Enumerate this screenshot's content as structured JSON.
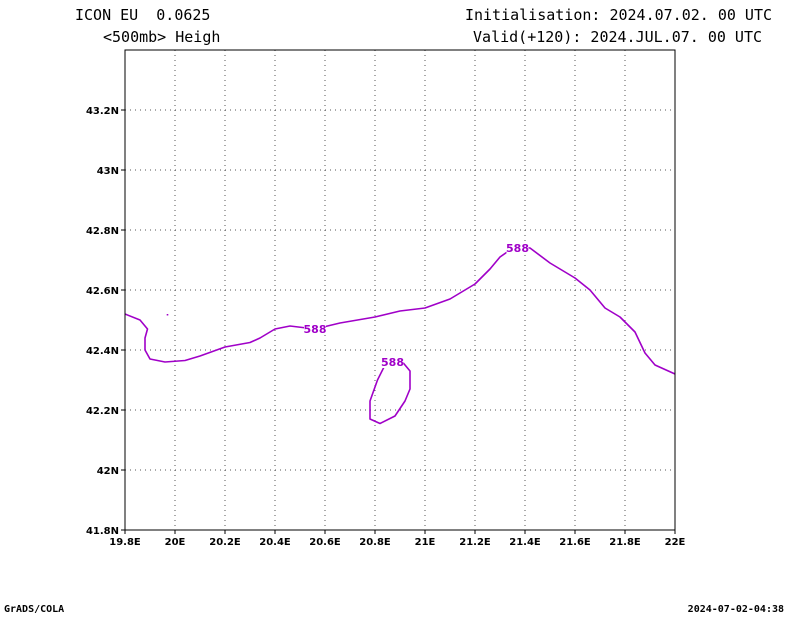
{
  "header": {
    "model": "ICON EU  0.0625",
    "field": "<500mb> Heigh",
    "init": "Initialisation: 2024.07.02. 00 UTC",
    "valid": "Valid(+120): 2024.JUL.07. 00 UTC"
  },
  "footer": {
    "left": "GrADS/COLA",
    "right": "2024-07-02-04:38"
  },
  "chart_data": {
    "type": "line",
    "xlim": [
      19.8,
      22.0
    ],
    "ylim": [
      41.8,
      43.4
    ],
    "xticks": [
      19.8,
      20.0,
      20.2,
      20.4,
      20.6,
      20.8,
      21.0,
      21.2,
      21.4,
      21.6,
      21.8,
      22.0
    ],
    "xtick_labels": [
      "19.8E",
      "20E",
      "20.2E",
      "20.4E",
      "20.6E",
      "20.8E",
      "21E",
      "21.2E",
      "21.4E",
      "21.6E",
      "21.8E",
      "22E"
    ],
    "yticks": [
      41.8,
      42.0,
      42.2,
      42.4,
      42.6,
      42.8,
      43.0,
      43.2
    ],
    "ytick_labels": [
      "41.8N",
      "42N",
      "42.2N",
      "42.4N",
      "42.6N",
      "42.8N",
      "43N",
      "43.2N"
    ],
    "grid": true,
    "line_color": "#a000c8",
    "series": [
      {
        "label": "588",
        "label_at": [
          20.56,
          42.47
        ],
        "points": [
          [
            19.8,
            42.52
          ],
          [
            19.86,
            42.5
          ],
          [
            19.89,
            42.47
          ],
          [
            19.88,
            42.44
          ],
          [
            19.88,
            42.4
          ],
          [
            19.9,
            42.37
          ],
          [
            19.96,
            42.36
          ],
          [
            20.04,
            42.365
          ],
          [
            20.1,
            42.38
          ],
          [
            20.2,
            42.41
          ],
          [
            20.3,
            42.425
          ],
          [
            20.34,
            42.44
          ],
          [
            20.4,
            42.47
          ],
          [
            20.46,
            42.48
          ],
          [
            20.56,
            42.47
          ],
          [
            20.66,
            42.49
          ],
          [
            20.8,
            42.51
          ],
          [
            20.9,
            42.53
          ],
          [
            21.0,
            42.54
          ],
          [
            21.1,
            42.57
          ],
          [
            21.2,
            42.62
          ],
          [
            21.26,
            42.67
          ],
          [
            21.3,
            42.71
          ],
          [
            21.36,
            42.745
          ],
          [
            21.42,
            42.74
          ],
          [
            21.5,
            42.69
          ],
          [
            21.6,
            42.64
          ],
          [
            21.66,
            42.6
          ],
          [
            21.72,
            42.54
          ],
          [
            21.78,
            42.51
          ],
          [
            21.84,
            42.46
          ],
          [
            21.88,
            42.39
          ],
          [
            21.92,
            42.35
          ],
          [
            22.0,
            42.32
          ]
        ]
      },
      {
        "label": "588",
        "label_at": [
          21.37,
          42.74
        ],
        "points": []
      },
      {
        "label": "588",
        "label_at": [
          20.87,
          42.36
        ],
        "points": [
          [
            20.87,
            42.365
          ],
          [
            20.91,
            42.36
          ],
          [
            20.94,
            42.33
          ],
          [
            20.94,
            42.27
          ],
          [
            20.92,
            42.23
          ],
          [
            20.88,
            42.18
          ],
          [
            20.82,
            42.155
          ],
          [
            20.78,
            42.17
          ],
          [
            20.78,
            42.23
          ],
          [
            20.81,
            42.3
          ],
          [
            20.84,
            42.35
          ],
          [
            20.87,
            42.365
          ]
        ]
      },
      {
        "label": "",
        "label_at": null,
        "points": [
          [
            19.97,
            42.52
          ],
          [
            19.97,
            42.515
          ]
        ]
      }
    ]
  }
}
